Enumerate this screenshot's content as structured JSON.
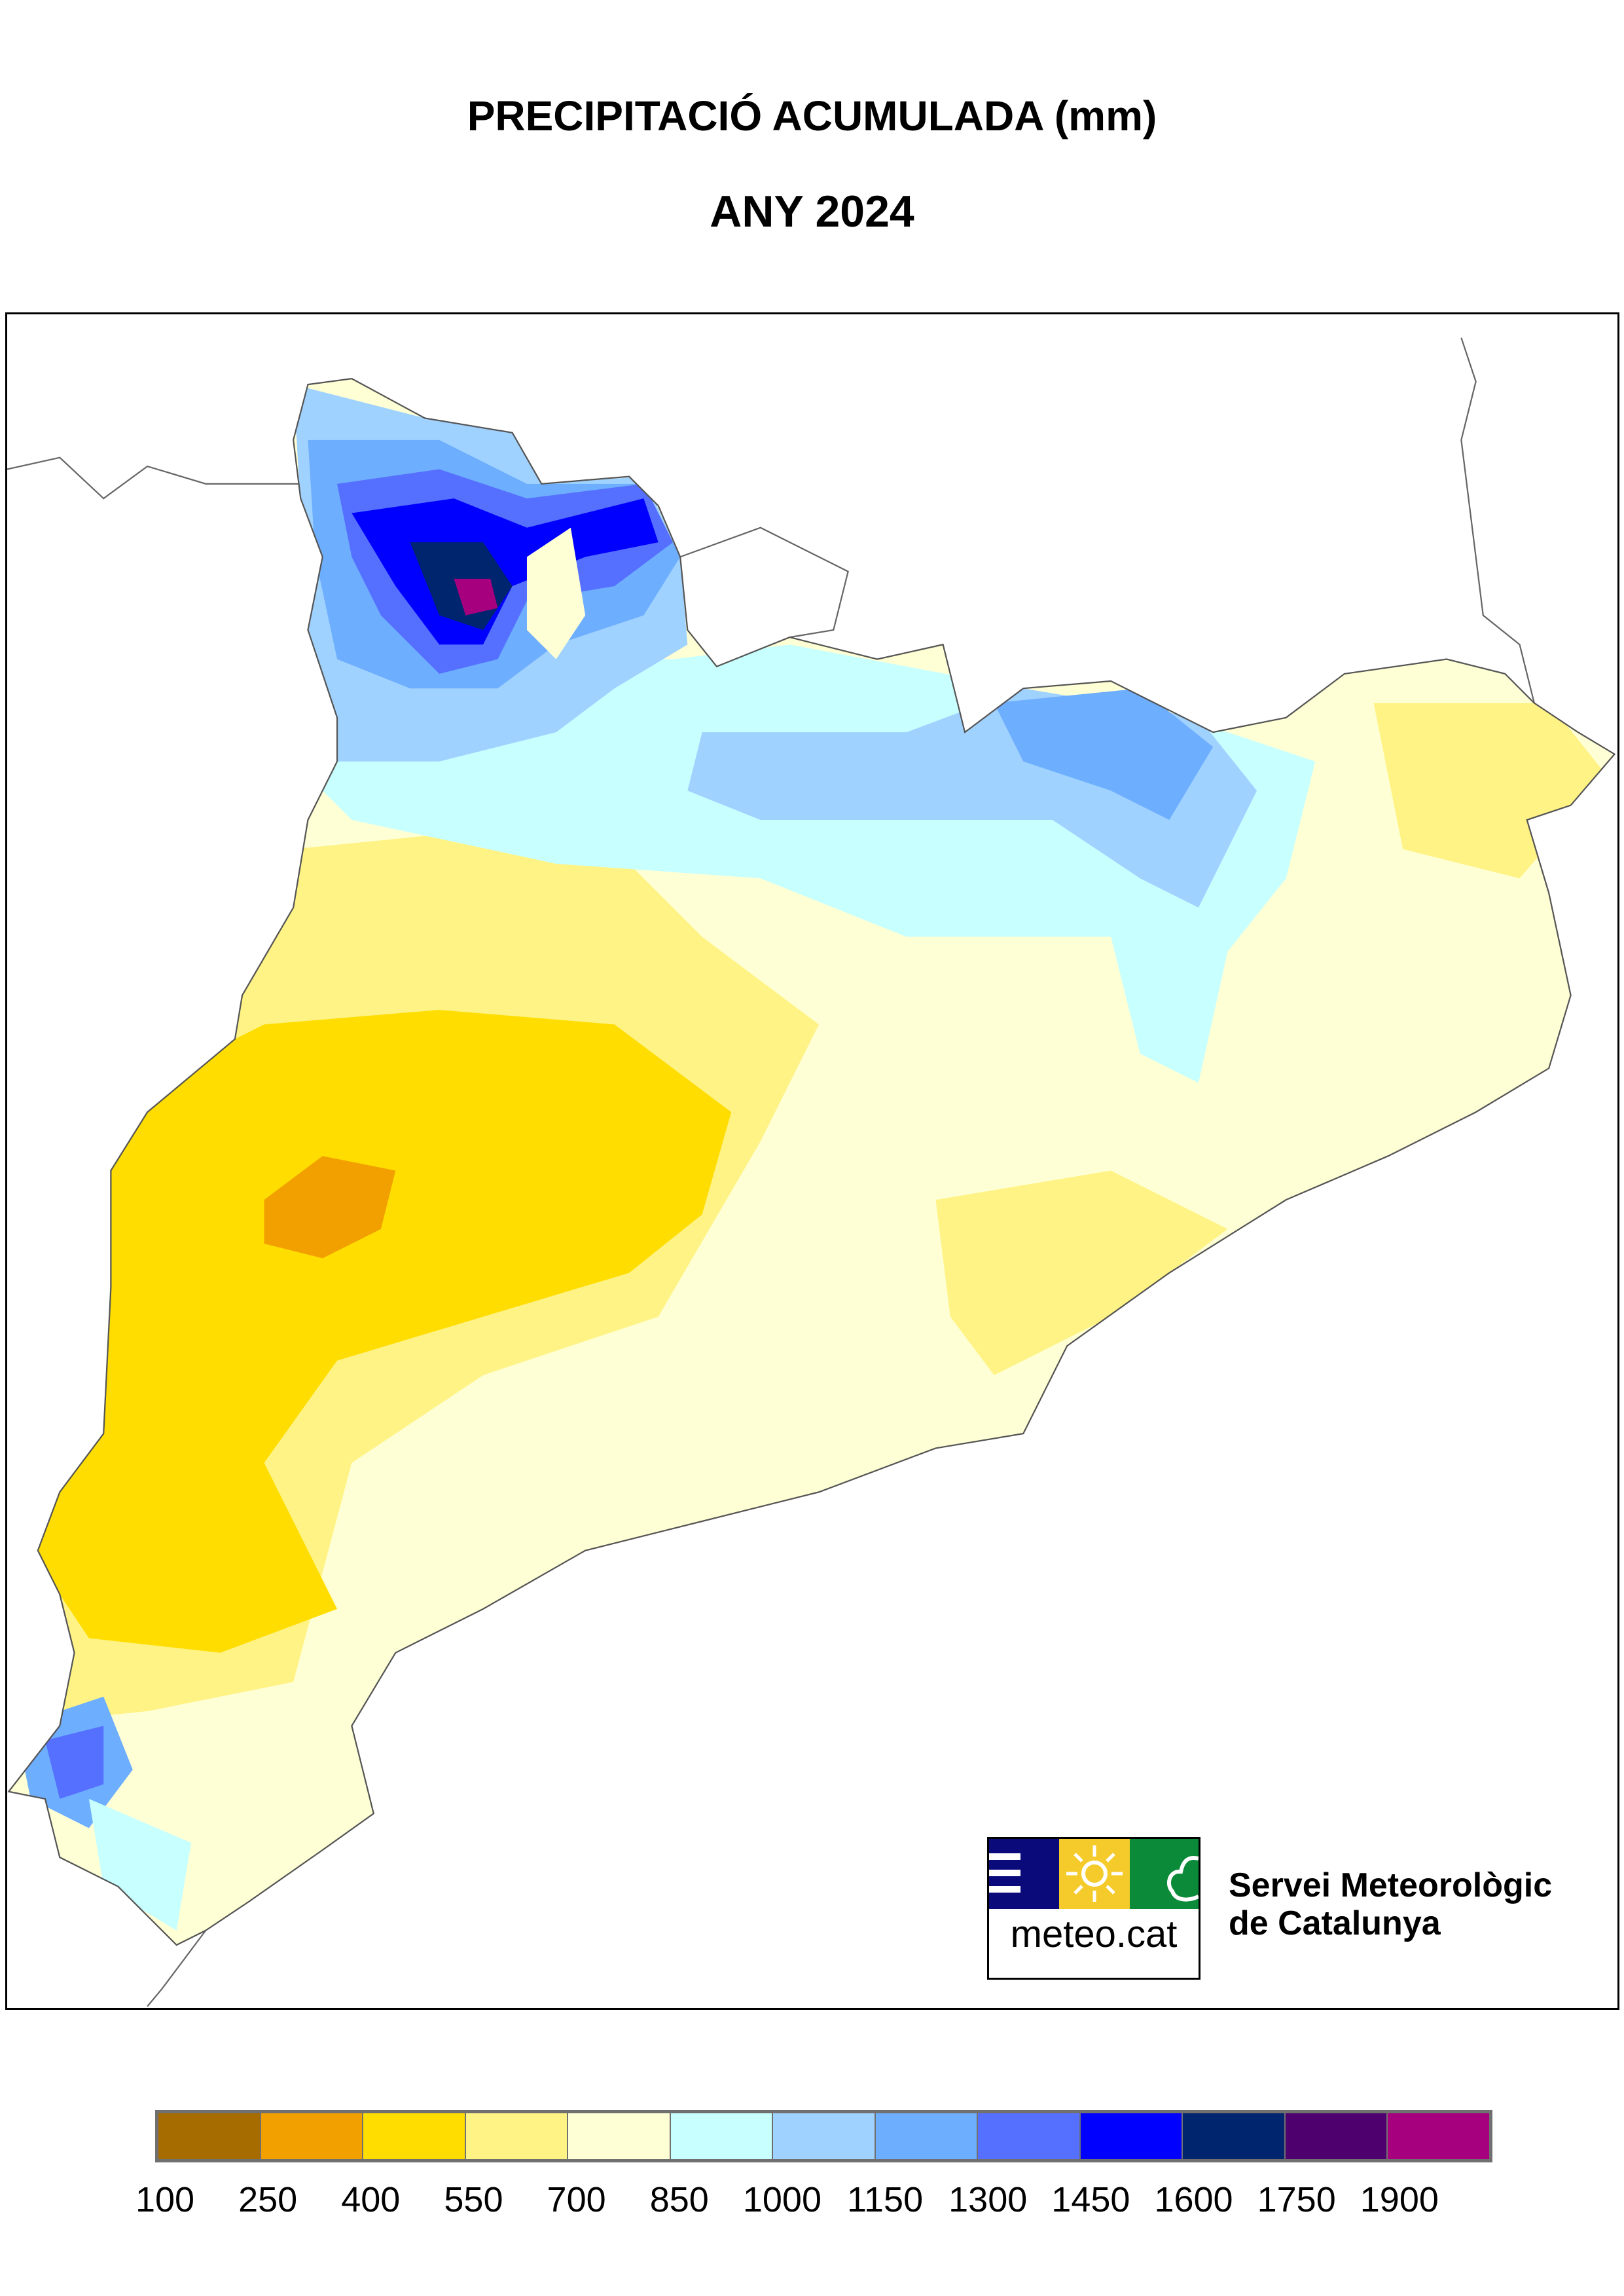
{
  "title": "PRECIPITACIÓ ACUMULADA (mm)",
  "subtitle": "ANY 2024",
  "legend": {
    "colors": [
      "#A66C00",
      "#F2A000",
      "#FFDD00",
      "#FFF385",
      "#FFFFD5",
      "#C8FFFF",
      "#A0D2FF",
      "#6EAEFF",
      "#556FFF",
      "#0000FF",
      "#00256F",
      "#4F006F",
      "#A6007F"
    ],
    "labels": [
      "100",
      "250",
      "400",
      "550",
      "700",
      "850",
      "1000",
      "1150",
      "1300",
      "1450",
      "1600",
      "1750",
      "1900"
    ]
  },
  "logo": {
    "text": "meteo.cat",
    "org_line1": "Servei Meteorològic",
    "org_line2": "de Catalunya",
    "colors": {
      "blue": "#0A0A7A",
      "yellow": "#F4CB2A",
      "green": "#0B8A3A"
    }
  }
}
